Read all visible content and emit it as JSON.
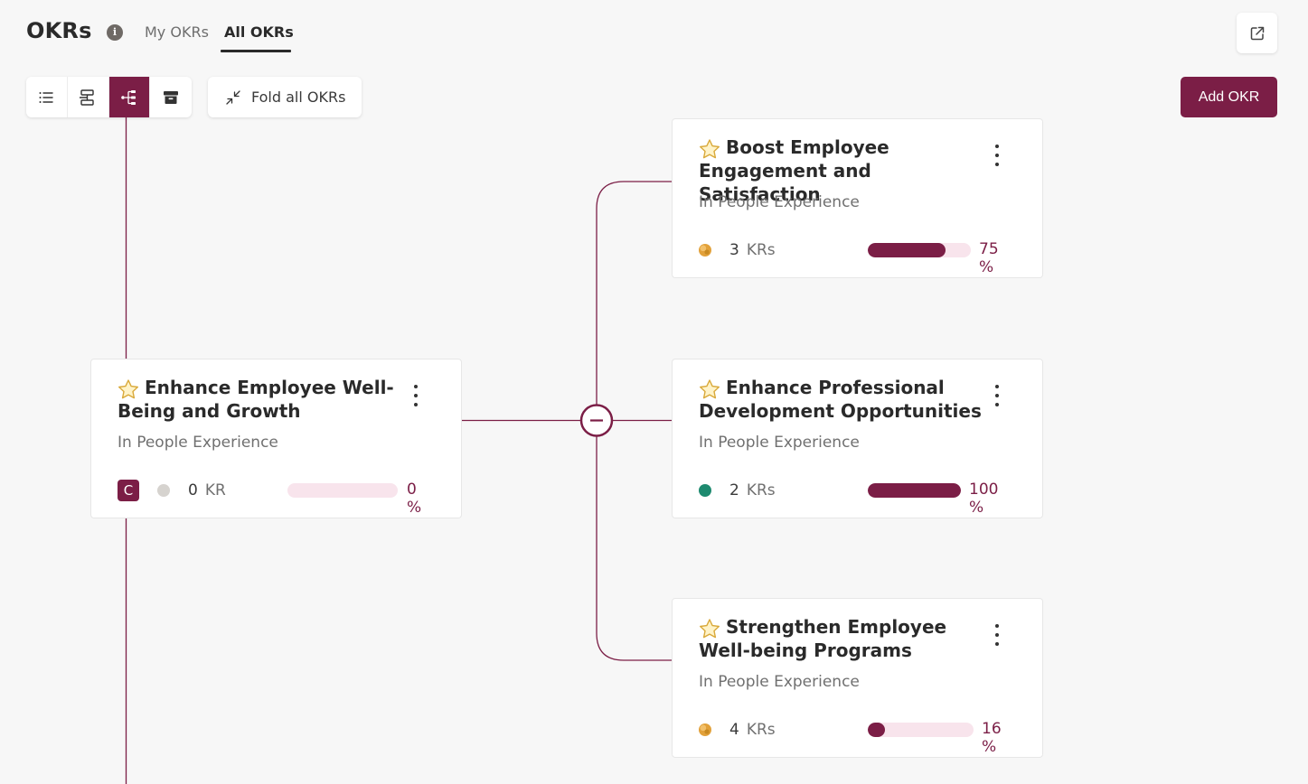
{
  "header": {
    "title": "OKRs",
    "tabs": [
      {
        "label": "My OKRs",
        "active": false
      },
      {
        "label": "All OKRs",
        "active": true
      }
    ]
  },
  "toolbar": {
    "views": [
      "list-icon",
      "hierarchy-icon",
      "tree-icon",
      "archive-icon"
    ],
    "active_view": "tree-icon",
    "fold_label": "Fold all OKRs",
    "add_label": "Add OKR"
  },
  "colors": {
    "accent": "#7b1e46",
    "progress_track": "#f8e4ec",
    "status_at_risk": "#e2a13a",
    "status_on_track": "#1e8a6f",
    "status_none": "#d6d3cf"
  },
  "parent_okr": {
    "title": "Enhance Employee Well-Being and Growth",
    "team": "In People Experience",
    "owner_initial": "C",
    "status": "grey",
    "kr_count": "0",
    "kr_label": "KR",
    "progress": 0,
    "progress_label": "0 %"
  },
  "child_okrs": [
    {
      "title": "Boost Employee Engagement and Satisfaction",
      "team": "In People Experience",
      "status": "orange",
      "kr_count": "3",
      "kr_label": "KRs",
      "progress": 75,
      "progress_label": "75 %"
    },
    {
      "title": "Enhance Professional Development Opportunities",
      "team": "In People Experience",
      "status": "green",
      "kr_count": "2",
      "kr_label": "KRs",
      "progress": 100,
      "progress_label": "100 %"
    },
    {
      "title": "Strengthen Employee Well-being Programs",
      "team": "In People Experience",
      "status": "orange",
      "kr_count": "4",
      "kr_label": "KRs",
      "progress": 16,
      "progress_label": "16 %"
    }
  ]
}
